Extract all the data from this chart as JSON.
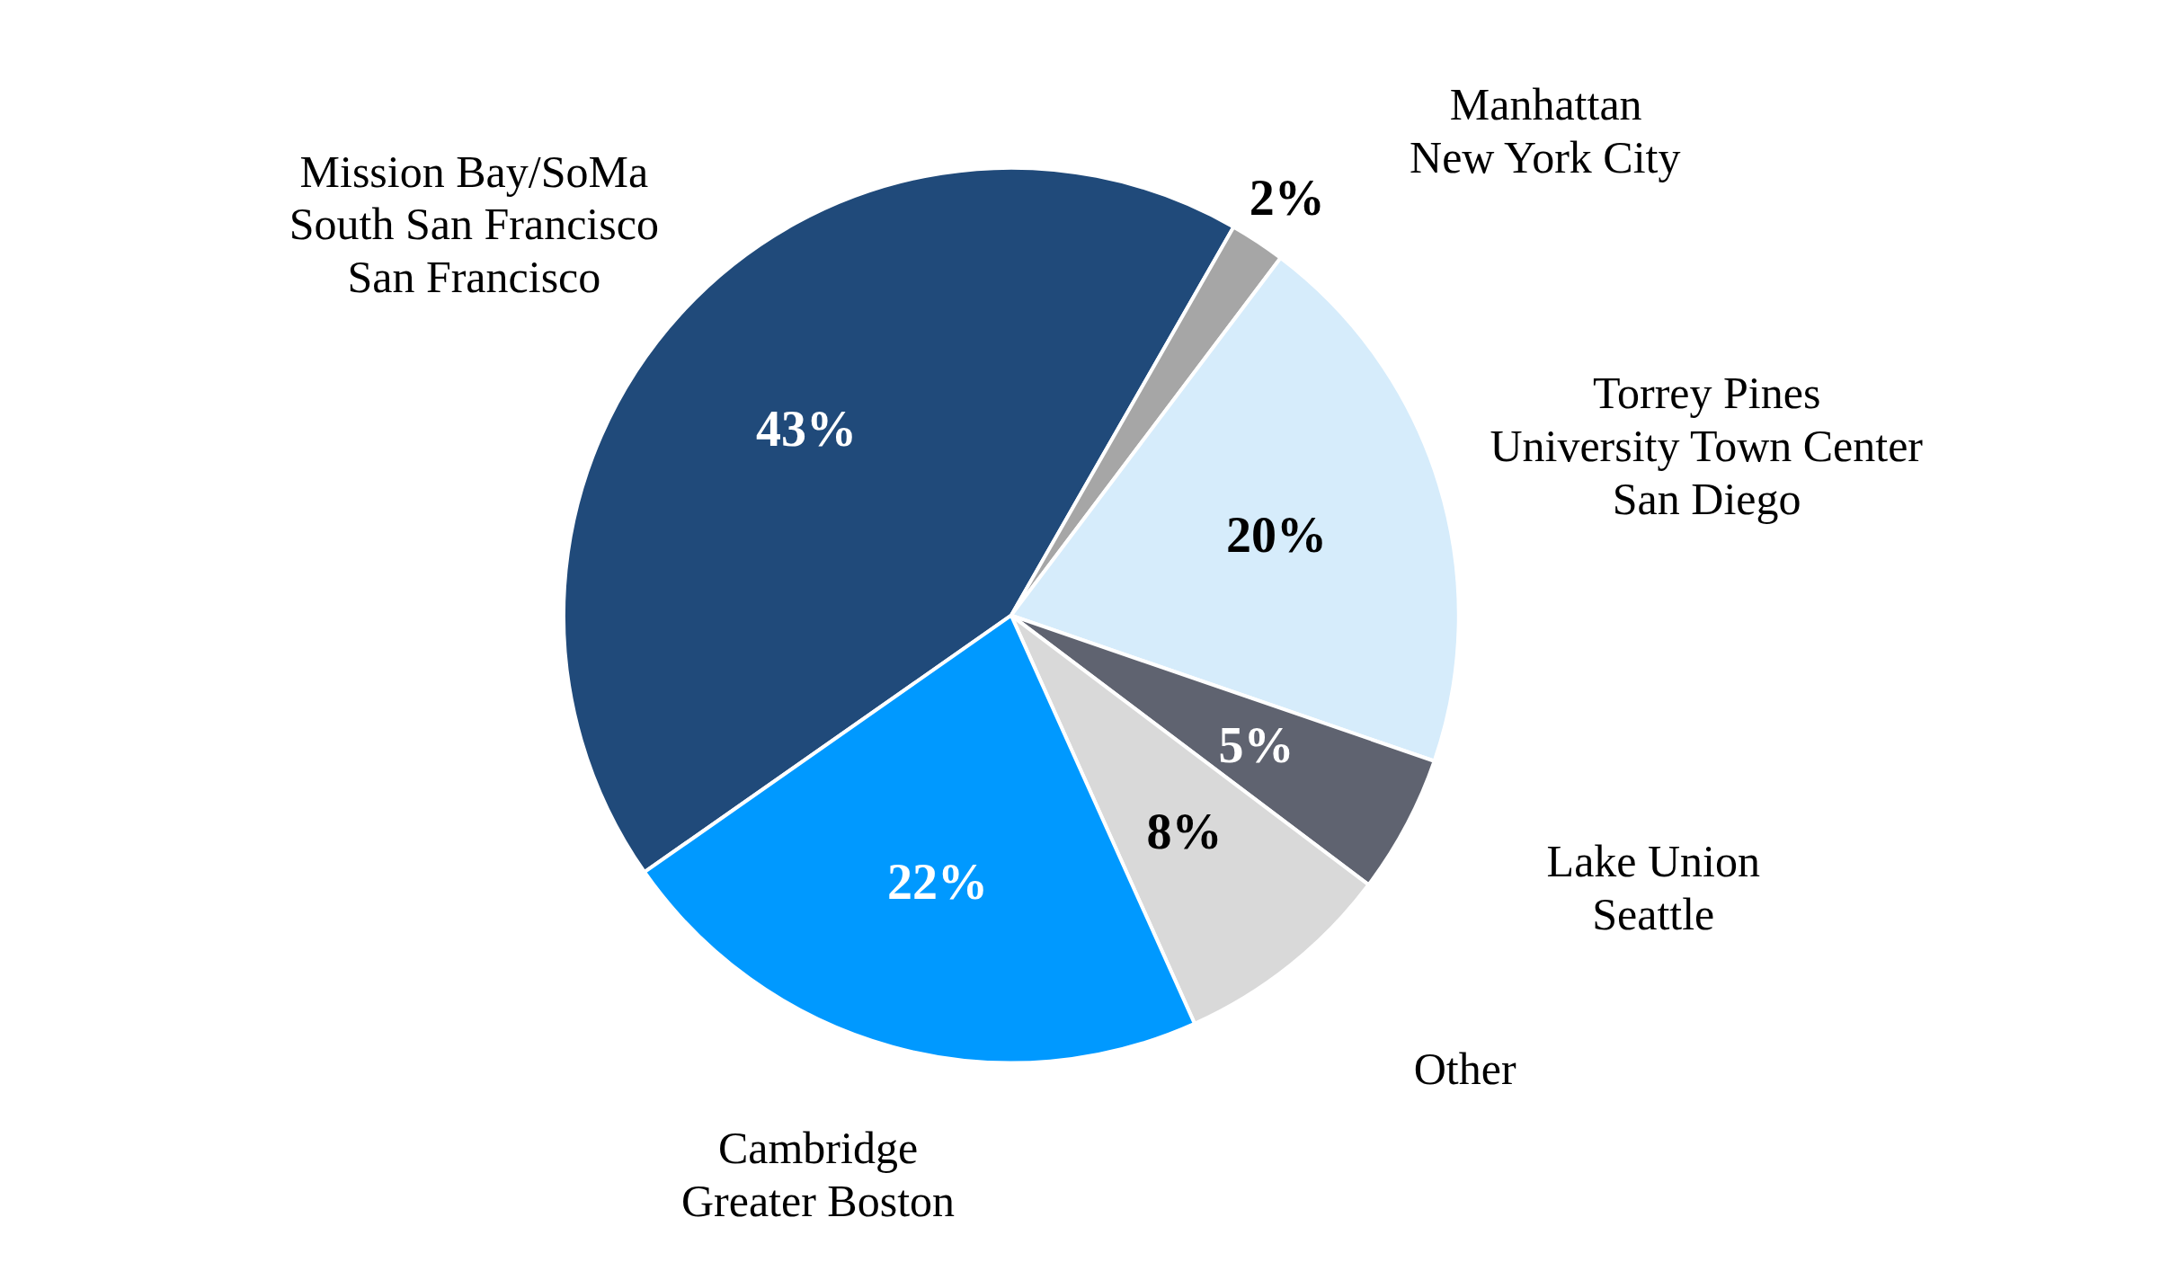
{
  "chart_data": {
    "type": "pie",
    "categories": [
      "Mission Bay/SoMa\nSouth San Francisco\nSan Francisco",
      "Manhattan\nNew York City",
      "Torrey Pines\nUniversity Town Center\nSan Diego",
      "Lake Union\nSeattle",
      "Other",
      "Cambridge\nGreater Boston"
    ],
    "values": [
      43,
      2,
      20,
      5,
      8,
      22
    ],
    "colors": [
      "#204a7a",
      "#a6a6a6",
      "#d6ecfb",
      "#5f6370",
      "#d9d9d9",
      "#0099ff"
    ],
    "value_labels": [
      "43%",
      "2%",
      "20%",
      "5%",
      "8%",
      "22%"
    ]
  }
}
